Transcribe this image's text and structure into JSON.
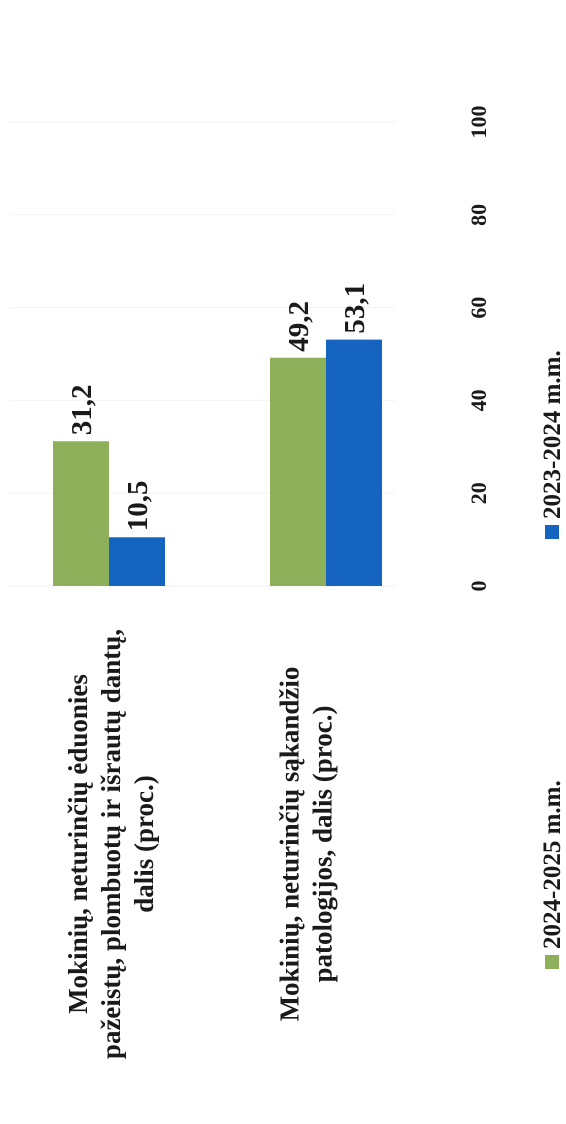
{
  "chart_data": {
    "type": "bar",
    "orientation": "horizontal",
    "categories": [
      [
        "Mokinių, neturinčių ėduonies",
        "pažeistų, plombuotų ir išrautų dantų,",
        "dalis (proc.)"
      ],
      [
        "Mokinių, neturinčių sąkandžio",
        "patologijos, dalis (proc.)"
      ]
    ],
    "series": [
      {
        "name": "2024-2025 m.m.",
        "color": "#8fb05a",
        "values": [
          31.2,
          49.2
        ],
        "labels": [
          "31,2",
          "49,2"
        ]
      },
      {
        "name": "2023-2024 m.m.",
        "color": "#1565c0",
        "values": [
          10.5,
          53.1
        ],
        "labels": [
          "10,5",
          "53,1"
        ]
      }
    ],
    "xlim": [
      0,
      100
    ],
    "ticks": [
      0,
      20,
      40,
      60,
      80,
      100
    ],
    "grid": false,
    "legend_position": "bottom",
    "rotation": "chart rotated 90° counter-clockwise on the page"
  }
}
